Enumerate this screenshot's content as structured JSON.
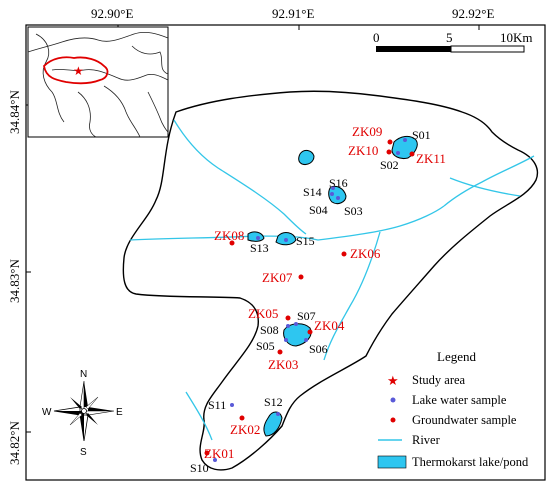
{
  "map": {
    "lon_ticks": [
      "92.90°E",
      "92.91°E",
      "92.92°E"
    ],
    "lat_ticks": [
      "34.84°N",
      "34.83°N",
      "34.82°N"
    ],
    "scale_bar": {
      "labels": [
        "0",
        "5",
        "10Km"
      ]
    },
    "north_arrow": {
      "n": "N",
      "s": "S",
      "e": "E",
      "w": "W"
    }
  },
  "inset": {
    "description_icon": "asia-locator-map",
    "marker": "star"
  },
  "lake_samples": [
    "S01",
    "S02",
    "S03",
    "S04",
    "S05",
    "S06",
    "S07",
    "S08",
    "S10",
    "S11",
    "S12",
    "S13",
    "S14",
    "S15",
    "S16"
  ],
  "groundwater_samples": [
    "ZK01",
    "ZK02",
    "ZK03",
    "ZK04",
    "ZK05",
    "ZK06",
    "ZK07",
    "ZK08",
    "ZK09",
    "ZK10",
    "ZK11"
  ],
  "legend": {
    "title": "Legend",
    "items": [
      {
        "label": "Study area",
        "symbol": "red-star"
      },
      {
        "label": "Lake water sample",
        "symbol": "blue-dot"
      },
      {
        "label": "Groundwater sample",
        "symbol": "red-dot"
      },
      {
        "label": "River",
        "symbol": "cyan-line"
      },
      {
        "label": "Thermokarst lake/pond",
        "symbol": "cyan-box"
      }
    ]
  },
  "colors": {
    "lake_fill": "#2ec6f0",
    "river": "#33c6e8",
    "groundwater": "#e00000",
    "lake_sample": "#5a5ad8",
    "study_area_star": "#e00000"
  }
}
